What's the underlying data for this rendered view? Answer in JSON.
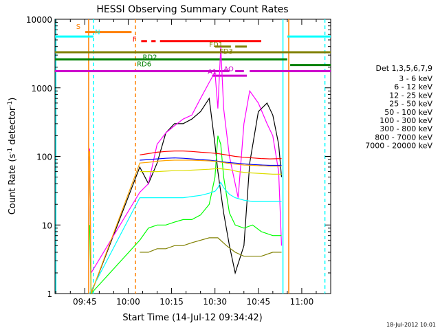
{
  "chart_data": {
    "type": "line",
    "title": "HESSI Observing Summary Count Rates",
    "xlabel": "Start Time (14-Jul-12 09:34:42)",
    "ylabel_main": "Count Rate (s",
    "ylabel_sup1": "-1",
    "ylabel_mid": " detector",
    "ylabel_sup2": "-1",
    "ylabel_end": ")",
    "footer_date": "18-Jul-2012 10:01",
    "y_scale": "log",
    "ylim": [
      1,
      10000
    ],
    "xlim": [
      "09:34:42",
      "11:10:00"
    ],
    "x_ticks": [
      "09:45",
      "10:00",
      "10:15",
      "10:30",
      "10:45",
      "11:00"
    ],
    "y_ticks": [
      "1",
      "10",
      "100",
      "1000",
      "10000"
    ],
    "legend_title": "Det 1,3,5,6,7,9",
    "legend_position": "right",
    "series": [
      {
        "name": "3 - 6 keV",
        "color": "#000000",
        "points": [
          [
            "09:46:40",
            100
          ],
          [
            "09:47:10",
            1
          ],
          [
            "10:04:00",
            70
          ],
          [
            "10:07:00",
            40
          ],
          [
            "10:10:00",
            80
          ],
          [
            "10:13:00",
            220
          ],
          [
            "10:16:00",
            300
          ],
          [
            "10:19:00",
            300
          ],
          [
            "10:22:00",
            350
          ],
          [
            "10:25:00",
            450
          ],
          [
            "10:28:00",
            700
          ],
          [
            "10:30:00",
            150
          ],
          [
            "10:31:00",
            60
          ],
          [
            "10:33:00",
            15
          ],
          [
            "10:35:00",
            5
          ],
          [
            "10:37:00",
            2
          ],
          [
            "10:40:00",
            5
          ],
          [
            "10:42:00",
            80
          ],
          [
            "10:45:00",
            450
          ],
          [
            "10:48:00",
            600
          ],
          [
            "10:50:00",
            400
          ],
          [
            "10:52:00",
            150
          ],
          [
            "10:53:00",
            50
          ]
        ]
      },
      {
        "name": "6 - 12 keV",
        "color": "#ff00ff",
        "points": [
          [
            "09:46:40",
            130
          ],
          [
            "09:47:10",
            2
          ],
          [
            "10:04:00",
            30
          ],
          [
            "10:07:00",
            40
          ],
          [
            "10:10:00",
            150
          ],
          [
            "10:13:00",
            220
          ],
          [
            "10:16:00",
            280
          ],
          [
            "10:19:00",
            350
          ],
          [
            "10:22:00",
            400
          ],
          [
            "10:25:00",
            700
          ],
          [
            "10:28:00",
            1200
          ],
          [
            "10:30:00",
            1700
          ],
          [
            "10:31:00",
            500
          ],
          [
            "10:32:00",
            4000
          ],
          [
            "10:33:00",
            500
          ],
          [
            "10:35:00",
            100
          ],
          [
            "10:37:00",
            40
          ],
          [
            "10:38:00",
            25
          ],
          [
            "10:40:00",
            300
          ],
          [
            "10:42:00",
            900
          ],
          [
            "10:45:00",
            600
          ],
          [
            "10:48:00",
            300
          ],
          [
            "10:50:00",
            200
          ],
          [
            "10:52:00",
            60
          ],
          [
            "10:53:00",
            5
          ]
        ]
      },
      {
        "name": "12 - 25 keV",
        "color": "#00ff00",
        "points": [
          [
            "09:46:40",
            10
          ],
          [
            "09:47:10",
            1
          ],
          [
            "10:04:00",
            6
          ],
          [
            "10:07:00",
            9
          ],
          [
            "10:10:00",
            10
          ],
          [
            "10:13:00",
            10
          ],
          [
            "10:16:00",
            11
          ],
          [
            "10:19:00",
            12
          ],
          [
            "10:22:00",
            12
          ],
          [
            "10:25:00",
            14
          ],
          [
            "10:28:00",
            20
          ],
          [
            "10:30:00",
            50
          ],
          [
            "10:31:00",
            200
          ],
          [
            "10:32:00",
            150
          ],
          [
            "10:33:00",
            50
          ],
          [
            "10:35:00",
            15
          ],
          [
            "10:37:00",
            10
          ],
          [
            "10:40:00",
            9
          ],
          [
            "10:43:00",
            10
          ],
          [
            "10:46:00",
            8
          ],
          [
            "10:50:00",
            7
          ],
          [
            "10:53:00",
            7
          ]
        ]
      },
      {
        "name": "25 - 50 keV",
        "color": "#00ffff",
        "points": [
          [
            "09:46:40",
            1
          ],
          [
            "10:04:00",
            25
          ],
          [
            "10:07:00",
            25
          ],
          [
            "10:10:00",
            25
          ],
          [
            "10:13:00",
            25
          ],
          [
            "10:16:00",
            25
          ],
          [
            "10:19:00",
            25
          ],
          [
            "10:22:00",
            26
          ],
          [
            "10:25:00",
            27
          ],
          [
            "10:28:00",
            29
          ],
          [
            "10:30:00",
            31
          ],
          [
            "10:31:00",
            35
          ],
          [
            "10:32:00",
            42
          ],
          [
            "10:33:00",
            35
          ],
          [
            "10:35:00",
            28
          ],
          [
            "10:37:00",
            25
          ],
          [
            "10:40:00",
            23
          ],
          [
            "10:43:00",
            22
          ],
          [
            "10:46:00",
            22
          ],
          [
            "10:50:00",
            22
          ],
          [
            "10:53:00",
            22
          ]
        ]
      },
      {
        "name": "50 - 100 keV",
        "color": "#dddd00",
        "points": [
          [
            "10:04:00",
            60
          ],
          [
            "10:07:00",
            60
          ],
          [
            "10:10:00",
            60
          ],
          [
            "10:13:00",
            61
          ],
          [
            "10:16:00",
            62
          ],
          [
            "10:19:00",
            62
          ],
          [
            "10:22:00",
            63
          ],
          [
            "10:25:00",
            64
          ],
          [
            "10:28:00",
            65
          ],
          [
            "10:30:00",
            66
          ],
          [
            "10:32:00",
            66
          ],
          [
            "10:35:00",
            64
          ],
          [
            "10:38:00",
            60
          ],
          [
            "10:41:00",
            58
          ],
          [
            "10:44:00",
            57
          ],
          [
            "10:47:00",
            56
          ],
          [
            "10:50:00",
            55
          ],
          [
            "10:53:00",
            55
          ]
        ]
      },
      {
        "name": "100 - 300 keV",
        "color": "#ff0000",
        "points": [
          [
            "10:04:00",
            105
          ],
          [
            "10:07:00",
            110
          ],
          [
            "10:10:00",
            115
          ],
          [
            "10:13:00",
            118
          ],
          [
            "10:16:00",
            120
          ],
          [
            "10:19:00",
            120
          ],
          [
            "10:22:00",
            118
          ],
          [
            "10:25:00",
            115
          ],
          [
            "10:28:00",
            113
          ],
          [
            "10:31:00",
            110
          ],
          [
            "10:34:00",
            105
          ],
          [
            "10:37:00",
            100
          ],
          [
            "10:40:00",
            97
          ],
          [
            "10:43:00",
            95
          ],
          [
            "10:46:00",
            93
          ],
          [
            "10:49:00",
            92
          ],
          [
            "10:53:00",
            93
          ]
        ]
      },
      {
        "name": "300 - 800 keV",
        "color": "#0000ff",
        "points": [
          [
            "10:04:00",
            88
          ],
          [
            "10:07:00",
            90
          ],
          [
            "10:10:00",
            92
          ],
          [
            "10:13:00",
            94
          ],
          [
            "10:16:00",
            95
          ],
          [
            "10:19:00",
            94
          ],
          [
            "10:22:00",
            92
          ],
          [
            "10:25:00",
            90
          ],
          [
            "10:28:00",
            88
          ],
          [
            "10:31:00",
            85
          ],
          [
            "10:34:00",
            82
          ],
          [
            "10:37:00",
            80
          ],
          [
            "10:40:00",
            78
          ],
          [
            "10:43:00",
            76
          ],
          [
            "10:46:00",
            75
          ],
          [
            "10:49:00",
            74
          ],
          [
            "10:53:00",
            74
          ]
        ]
      },
      {
        "name": "800 - 7000 keV",
        "color": "#ffa500",
        "points": [
          [
            "09:46:40",
            120
          ],
          [
            "09:47:10",
            1
          ],
          [
            "10:04:00",
            80
          ],
          [
            "10:07:00",
            82
          ],
          [
            "10:10:00",
            85
          ],
          [
            "10:13:00",
            87
          ],
          [
            "10:16:00",
            88
          ],
          [
            "10:19:00",
            88
          ],
          [
            "10:22:00",
            88
          ],
          [
            "10:25:00",
            87
          ],
          [
            "10:28:00",
            86
          ],
          [
            "10:31:00",
            84
          ],
          [
            "10:34:00",
            80
          ],
          [
            "10:37:00",
            77
          ],
          [
            "10:40:00",
            75
          ],
          [
            "10:43:00",
            74
          ],
          [
            "10:46:00",
            73
          ],
          [
            "10:49:00",
            72
          ],
          [
            "10:53:00",
            72
          ]
        ]
      },
      {
        "name": "7000 - 20000 keV",
        "color": "#808000",
        "points": [
          [
            "10:04:00",
            4
          ],
          [
            "10:07:00",
            4
          ],
          [
            "10:10:00",
            4.5
          ],
          [
            "10:13:00",
            4.5
          ],
          [
            "10:16:00",
            5
          ],
          [
            "10:19:00",
            5
          ],
          [
            "10:22:00",
            5.5
          ],
          [
            "10:25:00",
            6
          ],
          [
            "10:28:00",
            6.5
          ],
          [
            "10:31:00",
            6.5
          ],
          [
            "10:34:00",
            5
          ],
          [
            "10:37:00",
            4
          ],
          [
            "10:40:00",
            3.5
          ],
          [
            "10:43:00",
            3.5
          ],
          [
            "10:46:00",
            3.5
          ],
          [
            "10:50:00",
            4
          ],
          [
            "10:53:00",
            4
          ]
        ]
      }
    ],
    "flag_bars": [
      {
        "label": "S",
        "color": "#ff8000",
        "value": 6500,
        "segments": [
          [
            "09:45:10",
            "10:01:10"
          ]
        ]
      },
      {
        "label": "N",
        "color": "#00ffff",
        "value": 5600,
        "segments": [
          [
            "09:34:42",
            "09:48:00"
          ],
          [
            "10:55:00",
            "11:10:00"
          ]
        ]
      },
      {
        "label": "F",
        "color": "#ff0000",
        "value": 4800,
        "segments": [
          [
            "10:04:30",
            "10:06:30"
          ],
          [
            "10:08:00",
            "10:09:30"
          ],
          [
            "10:11:00",
            "10:46:00"
          ]
        ]
      },
      {
        "label": "FD1",
        "color": "#808000",
        "value": 4000,
        "segments": [
          [
            "10:30:00",
            "10:35:30"
          ],
          [
            "10:37:00",
            "10:41:00"
          ]
        ]
      },
      {
        "label": "FD3",
        "color": "#808000",
        "value": 3300,
        "segments": [
          [
            "09:34:42",
            "11:10:00"
          ]
        ]
      },
      {
        "label": "RD2",
        "color": "#008000",
        "value": 2600,
        "segments": [
          [
            "09:34:42",
            "10:55:00"
          ]
        ]
      },
      {
        "label": "RD6",
        "color": "#008000",
        "value": 2150,
        "segments": [
          [
            "10:56:00",
            "11:10:00"
          ]
        ]
      },
      {
        "label": "A1",
        "color": "#cc00cc",
        "value": 1750,
        "segments": [
          [
            "09:34:42",
            "10:35:00"
          ],
          [
            "10:37:00",
            "10:40:00"
          ],
          [
            "10:42:00",
            "11:10:00"
          ]
        ]
      },
      {
        "label": "AO",
        "color": "#cc00cc",
        "value": 1500,
        "segments": [
          [
            "10:29:00",
            "10:41:00"
          ]
        ]
      }
    ],
    "flag_labels": [
      {
        "text": "S",
        "color": "#ff8000",
        "time": "09:42:00",
        "value": 7200
      },
      {
        "text": "N",
        "color": "#00ffff",
        "time": "09:48:30",
        "value": 6000
      },
      {
        "text": "F",
        "color": "#ff0000",
        "time": "10:01:30",
        "value": 4700
      },
      {
        "text": "FD1",
        "color": "#808000",
        "time": "10:28:00",
        "value": 3950
      },
      {
        "text": "FD3",
        "color": "#808000",
        "time": "10:31:30",
        "value": 3150
      },
      {
        "text": "RD2",
        "color": "#008000",
        "time": "10:05:00",
        "value": 2600
      },
      {
        "text": "RD6",
        "color": "#008000",
        "time": "10:03:00",
        "value": 2050
      },
      {
        "text": "A1",
        "color": "#cc00cc",
        "time": "10:27:30",
        "value": 1600
      },
      {
        "text": "AO",
        "color": "#cc00cc",
        "time": "10:33:00",
        "value": 1750
      }
    ],
    "verticals": [
      {
        "time": "09:35:00",
        "color": "#00ffff",
        "style": "solid"
      },
      {
        "time": "09:48:00",
        "color": "#00ffff",
        "style": "dash"
      },
      {
        "time": "09:46:20",
        "color": "#ff8000",
        "style": "solid"
      },
      {
        "time": "10:02:30",
        "color": "#ff8000",
        "style": "dash"
      },
      {
        "time": "10:53:30",
        "color": "#00ffff",
        "style": "solid"
      },
      {
        "time": "10:55:30",
        "color": "#ff8000",
        "style": "solid"
      },
      {
        "time": "11:08:00",
        "color": "#00ffff",
        "style": "dash"
      }
    ]
  }
}
